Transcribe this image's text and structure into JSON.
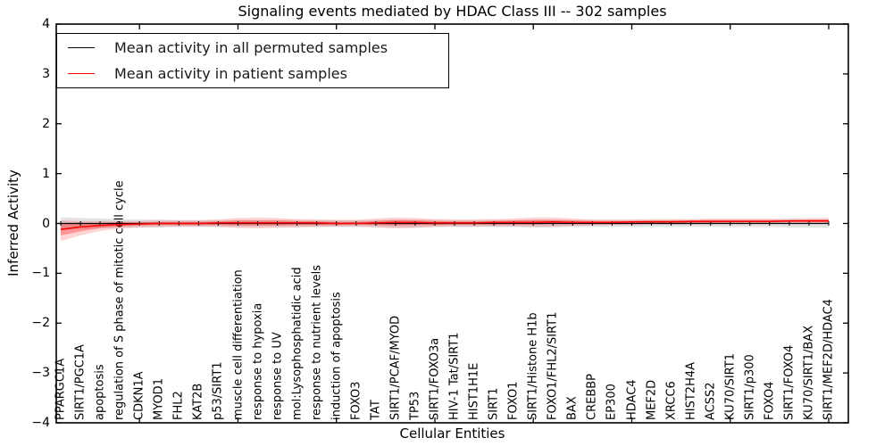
{
  "chart_data": {
    "type": "line",
    "title": "Signaling events mediated by HDAC Class III -- 302 samples",
    "xlabel": "Cellular Entities",
    "ylabel": "Inferred Activity",
    "ylim": [
      -4,
      4
    ],
    "yticks": [
      "4",
      "3",
      "2",
      "1",
      "0",
      "−1",
      "−2",
      "−3",
      "−4"
    ],
    "grid": false,
    "legend_position": "upper left",
    "categories": [
      "PPARGC1A",
      "SIRT1/PGC1A",
      "apoptosis",
      "regulation of S phase of mitotic cell cycle",
      "CDKN1A",
      "MYOD1",
      "FHL2",
      "KAT2B",
      "p53/SIRT1",
      "muscle cell differentiation",
      "response to hypoxia",
      "response to UV",
      "mol:Lysophosphatidic acid",
      "response to nutrient levels",
      "induction of apoptosis",
      "FOXO3",
      "TAT",
      "SIRT1/PCAF/MYOD",
      "TP53",
      "SIRT1/FOXO3a",
      "HIV-1 Tat/SIRT1",
      "HIST1H1E",
      "SIRT1",
      "FOXO1",
      "SIRT1/Histone H1b",
      "FOXO1/FHL2/SIRT1",
      "BAX",
      "CREBBP",
      "EP300",
      "HDAC4",
      "MEF2D",
      "XRCC6",
      "HIST2H4A",
      "ACSS2",
      "KU70/SIRT1",
      "SIRT1/p300",
      "FOXO4",
      "SIRT1/FOXO4",
      "KU70/SIRT1/BAX",
      "SIRT1/MEF2D/HDAC4"
    ],
    "series": [
      {
        "name": "Mean activity in all permuted samples",
        "color": "#000000",
        "values": [
          0,
          0,
          0,
          0,
          0,
          0,
          0,
          0,
          0,
          0,
          0,
          0,
          0,
          0,
          0,
          0,
          0,
          0,
          0,
          0,
          0,
          0,
          0,
          0,
          0,
          0,
          0,
          0,
          0,
          0,
          0,
          0,
          0,
          0,
          0,
          0,
          0,
          0,
          0,
          0
        ],
        "band_high": [
          0.12,
          0.11,
          0.1,
          0.09,
          0.08,
          0.08,
          0.07,
          0.07,
          0.07,
          0.07,
          0.07,
          0.07,
          0.07,
          0.07,
          0.07,
          0.07,
          0.07,
          0.08,
          0.08,
          0.07,
          0.07,
          0.07,
          0.07,
          0.07,
          0.08,
          0.08,
          0.07,
          0.07,
          0.07,
          0.07,
          0.07,
          0.07,
          0.07,
          0.07,
          0.07,
          0.07,
          0.07,
          0.08,
          0.08,
          0.09
        ],
        "band_low": [
          -0.12,
          -0.11,
          -0.1,
          -0.09,
          -0.08,
          -0.08,
          -0.07,
          -0.07,
          -0.07,
          -0.07,
          -0.07,
          -0.07,
          -0.07,
          -0.07,
          -0.07,
          -0.07,
          -0.07,
          -0.08,
          -0.08,
          -0.07,
          -0.07,
          -0.07,
          -0.07,
          -0.07,
          -0.08,
          -0.08,
          -0.07,
          -0.07,
          -0.07,
          -0.07,
          -0.07,
          -0.07,
          -0.07,
          -0.07,
          -0.07,
          -0.07,
          -0.07,
          -0.08,
          -0.08,
          -0.09
        ]
      },
      {
        "name": "Mean activity in patient samples",
        "color": "#ff0000",
        "values": [
          -0.12,
          -0.07,
          -0.04,
          -0.02,
          -0.01,
          0,
          0,
          0,
          0.01,
          0.01,
          0.01,
          0.01,
          0.01,
          0.01,
          0,
          0,
          0.01,
          0.02,
          0.02,
          0.01,
          0.01,
          0.01,
          0.02,
          0.02,
          0.02,
          0.03,
          0.02,
          0.02,
          0.02,
          0.03,
          0.03,
          0.03,
          0.04,
          0.04,
          0.04,
          0.04,
          0.04,
          0.05,
          0.05,
          0.05
        ],
        "band_high": [
          0.06,
          0.05,
          0.05,
          0.05,
          0.05,
          0.06,
          0.06,
          0.06,
          0.08,
          0.11,
          0.12,
          0.11,
          0.09,
          0.08,
          0.07,
          0.07,
          0.1,
          0.12,
          0.11,
          0.09,
          0.08,
          0.08,
          0.09,
          0.1,
          0.12,
          0.12,
          0.1,
          0.08,
          0.08,
          0.08,
          0.09,
          0.09,
          0.09,
          0.1,
          0.1,
          0.1,
          0.1,
          0.1,
          0.11,
          0.11
        ],
        "band_low": [
          -0.35,
          -0.24,
          -0.15,
          -0.1,
          -0.08,
          -0.07,
          -0.06,
          -0.06,
          -0.07,
          -0.09,
          -0.1,
          -0.09,
          -0.08,
          -0.07,
          -0.06,
          -0.06,
          -0.08,
          -0.1,
          -0.09,
          -0.07,
          -0.06,
          -0.06,
          -0.06,
          -0.06,
          -0.07,
          -0.06,
          -0.05,
          -0.04,
          -0.03,
          -0.03,
          -0.02,
          -0.02,
          -0.02,
          -0.01,
          -0.01,
          -0.01,
          0,
          0,
          0,
          0
        ],
        "band_inner_high": [
          0.0,
          0.0,
          0.01,
          0.02,
          0.02,
          0.03,
          0.03,
          0.03,
          0.04,
          0.06,
          0.06,
          0.06,
          0.05,
          0.04,
          0.03,
          0.03,
          0.05,
          0.07,
          0.06,
          0.05,
          0.04,
          0.04,
          0.05,
          0.06,
          0.07,
          0.07,
          0.06,
          0.05,
          0.05,
          0.05,
          0.06,
          0.06,
          0.06,
          0.07,
          0.07,
          0.07,
          0.07,
          0.07,
          0.08,
          0.08
        ],
        "band_inner_low": [
          -0.24,
          -0.16,
          -0.09,
          -0.06,
          -0.04,
          -0.03,
          -0.03,
          -0.03,
          -0.03,
          -0.04,
          -0.04,
          -0.04,
          -0.03,
          -0.03,
          -0.03,
          -0.02,
          -0.03,
          -0.04,
          -0.03,
          -0.03,
          -0.02,
          -0.02,
          -0.02,
          -0.02,
          -0.02,
          -0.01,
          -0.01,
          -0.01,
          0,
          0,
          0,
          0.01,
          0.01,
          0.01,
          0.02,
          0.02,
          0.02,
          0.03,
          0.03,
          0.03
        ]
      }
    ]
  }
}
